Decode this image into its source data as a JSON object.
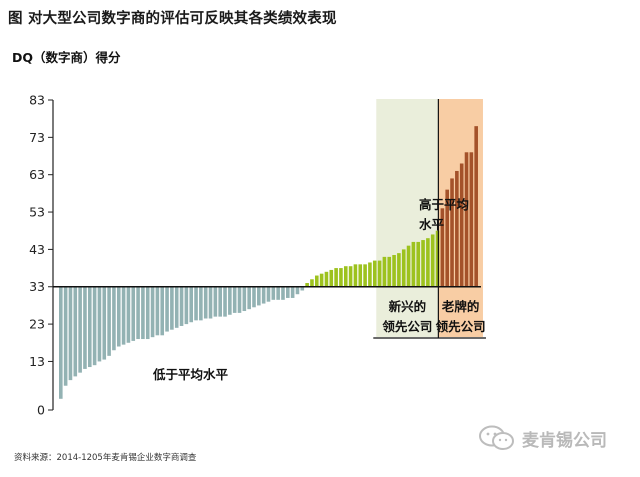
{
  "title": "图 对大型公司数字商的评估可反映其各类绩效表现",
  "source": "资料来源：2014-1205年麦肯锡企业数字商调查",
  "brand": {
    "text": "麦肯锡公司",
    "icon": "wechat-icon"
  },
  "chart_data": {
    "type": "bar",
    "title": "",
    "ylabel": "DQ（数字商）得分",
    "xlabel": "",
    "ylim": [
      0,
      83
    ],
    "ytick_labels": [
      "0",
      "13",
      "23",
      "33",
      "43",
      "53",
      "63",
      "73",
      "83"
    ],
    "baseline": 33,
    "grid": false,
    "colors": {
      "below": "#93b2b3",
      "above": "#9dc21e",
      "leader": "#a4522a",
      "emerging_bg": "#eaeedb",
      "leader_bg": "#f8cda4"
    },
    "annotations": {
      "below_avg": "低于平均水平",
      "above_avg": [
        "高于平均",
        "水平"
      ],
      "emerging": [
        "新兴的",
        "领先公司"
      ],
      "leaders": [
        "老牌的",
        "领先公司"
      ]
    },
    "series": [
      {
        "group": "below",
        "values": [
          3,
          6.5,
          8,
          9,
          10,
          11,
          11.5,
          12,
          13,
          13.5,
          14.5,
          16,
          17,
          17.5,
          18,
          18.5,
          19,
          19,
          19,
          19.5,
          20,
          20,
          21,
          21.5,
          22,
          22.5,
          23,
          23.5,
          24,
          24,
          24.5,
          24.5,
          25,
          25,
          25,
          25.5,
          26,
          26,
          26.5,
          27,
          27.5,
          28,
          28.5,
          29,
          29.5,
          29.5,
          29.5,
          30,
          30,
          31,
          32
        ]
      },
      {
        "group": "above",
        "values": [
          34,
          35,
          36,
          36.5,
          37,
          37.5,
          38,
          38,
          38.5,
          38.5,
          39,
          39,
          39,
          39.5,
          40,
          40,
          41,
          41,
          41.5,
          42,
          43,
          44,
          45,
          45,
          45.5,
          46,
          47,
          48
        ]
      },
      {
        "group": "leader",
        "values": [
          54,
          59,
          62,
          64,
          66,
          69,
          69,
          76
        ]
      }
    ]
  }
}
